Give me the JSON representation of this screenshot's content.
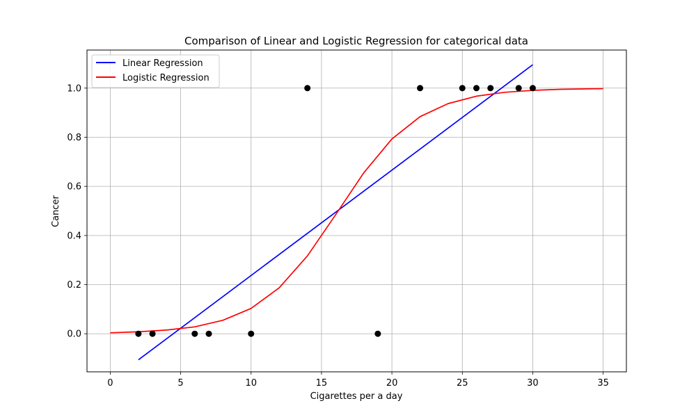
{
  "chart_data": {
    "type": "scatter",
    "title": "Comparison of Linear and Logistic Regression for categorical data",
    "xlabel": "Cigarettes per a day",
    "ylabel": "Cancer",
    "xlim": [
      -1.65,
      36.65
    ],
    "ylim": [
      -0.155,
      1.155
    ],
    "xticks": [
      0,
      5,
      10,
      15,
      20,
      25,
      30,
      35
    ],
    "xtick_labels": [
      "0",
      "5",
      "10",
      "15",
      "20",
      "25",
      "30",
      "35"
    ],
    "yticks": [
      0.0,
      0.2,
      0.4,
      0.6,
      0.8,
      1.0
    ],
    "ytick_labels": [
      "0.0",
      "0.2",
      "0.4",
      "0.6",
      "0.8",
      "1.0"
    ],
    "grid": true,
    "legend_position": "top-left",
    "points": {
      "x": [
        2,
        3,
        6,
        7,
        10,
        14,
        19,
        22,
        25,
        26,
        27,
        29,
        30
      ],
      "y": [
        0,
        0,
        0,
        0,
        0,
        1,
        0,
        1,
        1,
        1,
        1,
        1,
        1
      ],
      "color": "#000000"
    },
    "series": [
      {
        "name": "Linear Regression",
        "color": "#0000ff",
        "x": [
          2,
          30
        ],
        "y": [
          -0.106,
          1.095
        ]
      },
      {
        "name": "Logistic Regression",
        "color": "#ff0000",
        "x": [
          0,
          2,
          4,
          6,
          8,
          10,
          12,
          14,
          16,
          18,
          20,
          22,
          24,
          26,
          28,
          30,
          32,
          35
        ],
        "y": [
          0.004,
          0.008,
          0.015,
          0.028,
          0.055,
          0.103,
          0.187,
          0.317,
          0.484,
          0.655,
          0.793,
          0.884,
          0.937,
          0.967,
          0.983,
          0.991,
          0.995,
          0.998
        ]
      }
    ]
  }
}
